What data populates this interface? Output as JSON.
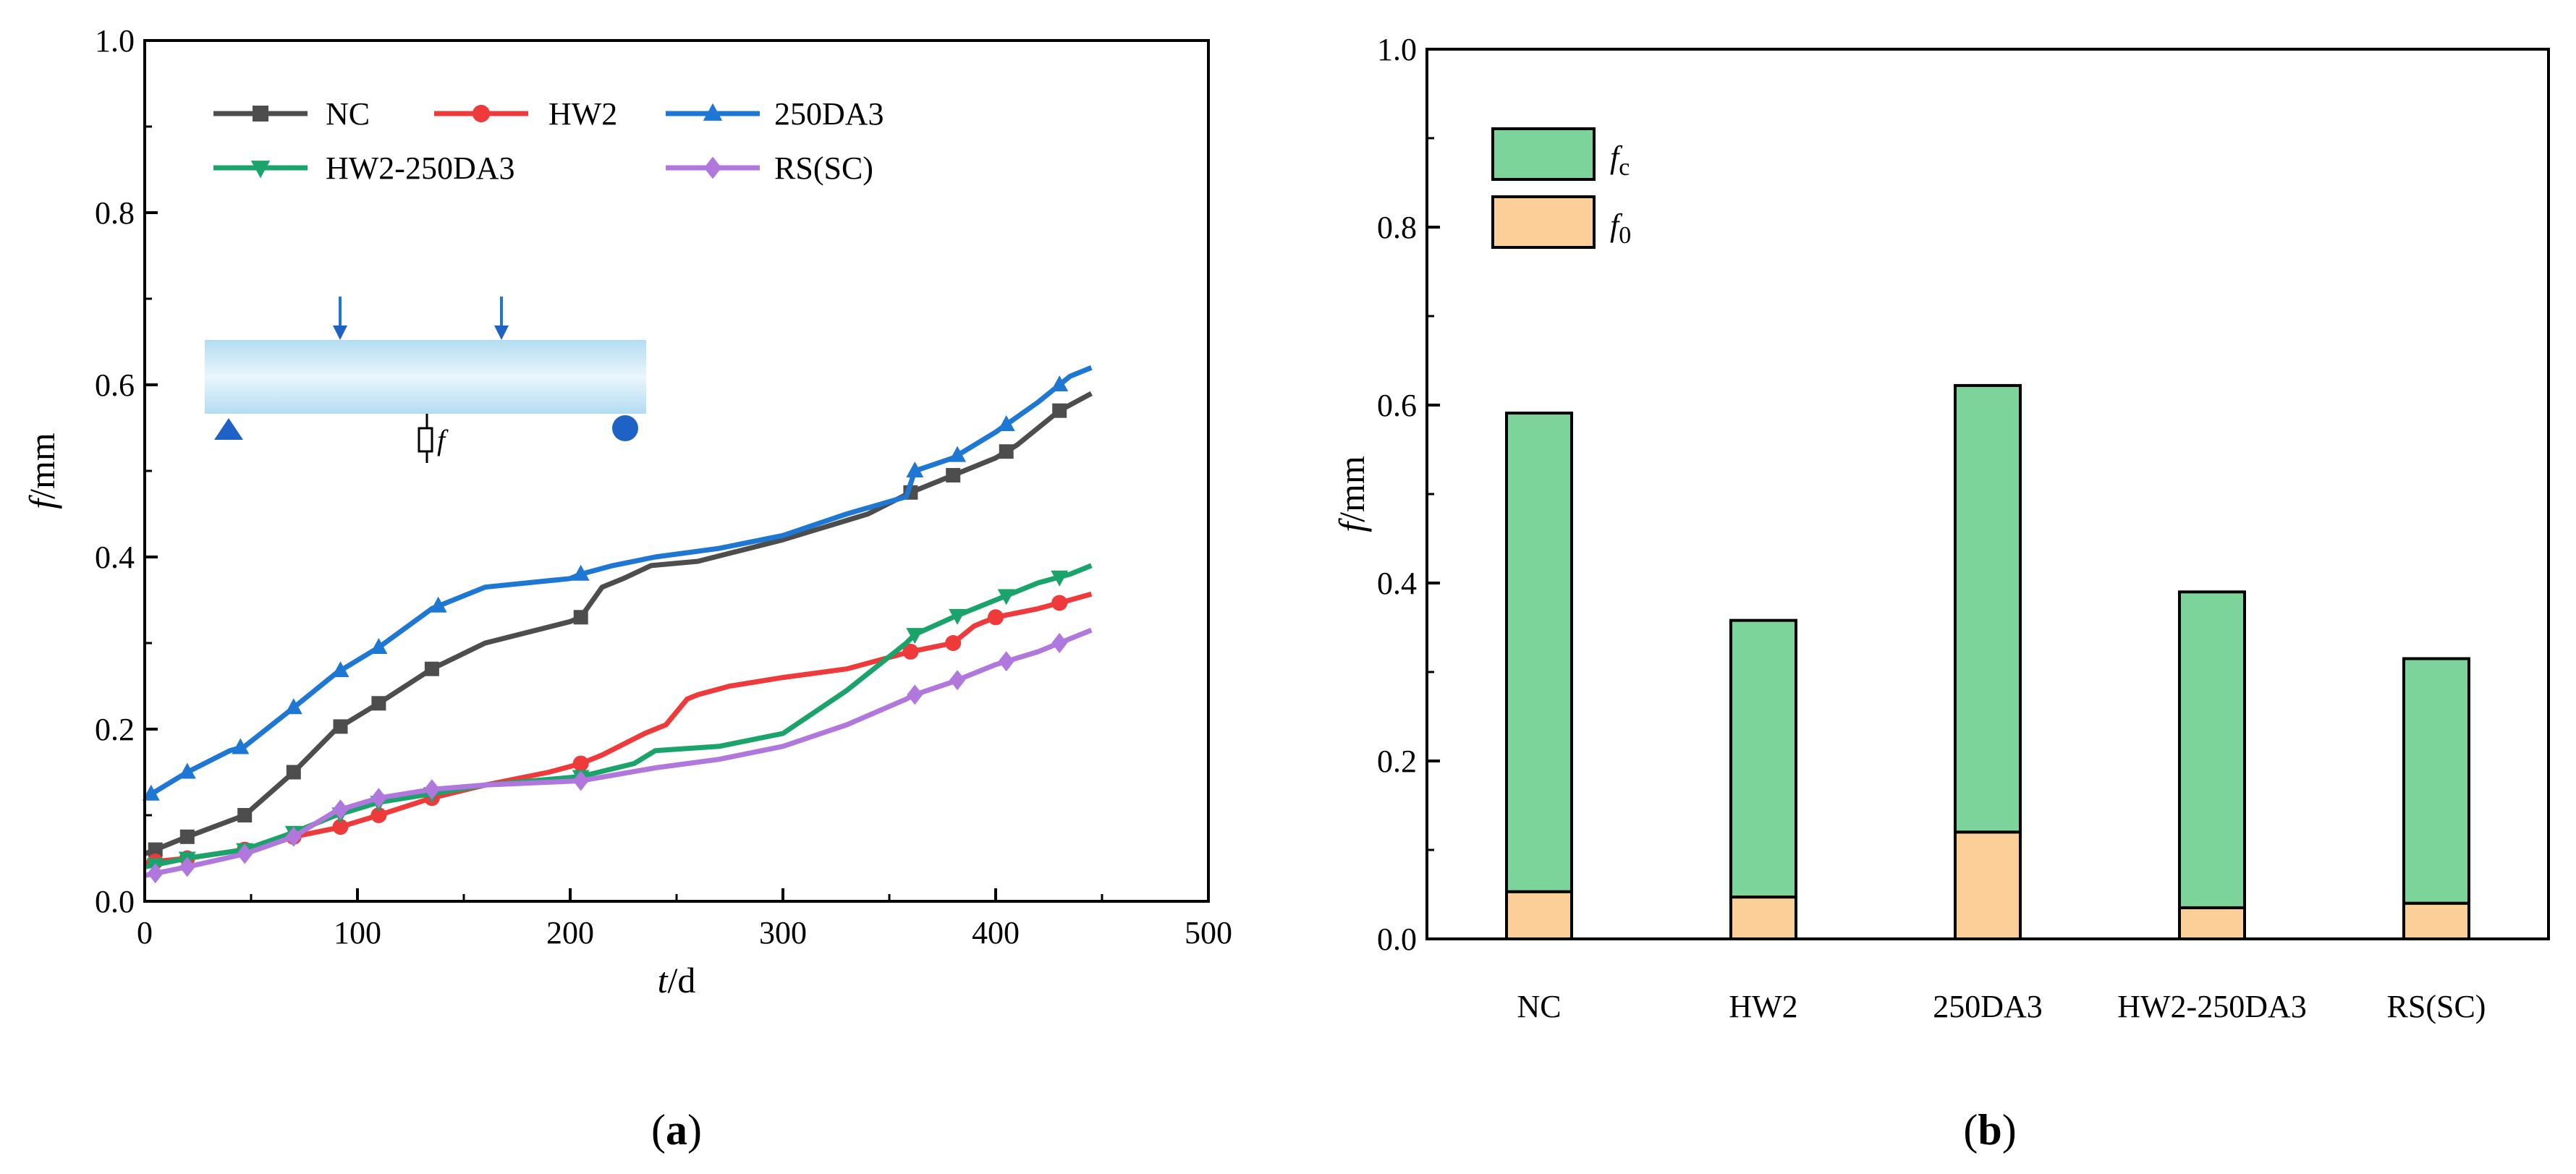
{
  "colors": {
    "NC": "#4d4d4d",
    "HW2": "#ee3a3a",
    "250DA3": "#1f77d4",
    "HW2-250DA3": "#1aa36a",
    "RS(SC)": "#b077dd",
    "fc_fill": "#7dd49b",
    "f0_fill": "#fccf98",
    "beam_edge": "#b3dcf2",
    "beam_mid": "#eaf6fc",
    "support": "#1f62c5"
  },
  "panel_labels": {
    "a": "(a)",
    "b": "(b)"
  },
  "chart_data": [
    {
      "type": "line",
      "xlabel": {
        "italic": "t",
        "rest": "/d"
      },
      "ylabel": {
        "italic": "f",
        "rest": "/mm"
      },
      "xlim": [
        0,
        500
      ],
      "ylim": [
        0,
        1.0
      ],
      "xticks": [
        "0",
        "100",
        "200",
        "300",
        "400",
        "500"
      ],
      "yticks": [
        "0.0",
        "0.2",
        "0.4",
        "0.6",
        "0.8",
        "1.0"
      ],
      "inset": {
        "label": "f"
      },
      "series": [
        {
          "name": "NC",
          "marker": "square",
          "x": [
            0,
            20,
            47,
            70,
            90,
            110,
            135,
            160,
            200,
            205,
            215,
            225,
            238,
            260,
            300,
            340,
            360,
            380,
            400,
            410,
            430,
            445
          ],
          "y": [
            0.055,
            0.075,
            0.1,
            0.15,
            0.2,
            0.23,
            0.27,
            0.3,
            0.325,
            0.33,
            0.365,
            0.375,
            0.39,
            0.395,
            0.42,
            0.45,
            0.475,
            0.495,
            0.515,
            0.53,
            0.57,
            0.59
          ],
          "markers_x": [
            5,
            20,
            47,
            70,
            92,
            110,
            135,
            205,
            360,
            380,
            405,
            430
          ]
        },
        {
          "name": "HW2",
          "marker": "circle",
          "x": [
            0,
            20,
            47,
            70,
            90,
            110,
            135,
            160,
            190,
            205,
            215,
            235,
            245,
            255,
            260,
            275,
            300,
            330,
            360,
            380,
            390,
            400,
            420,
            435,
            445
          ],
          "y": [
            0.045,
            0.05,
            0.06,
            0.075,
            0.085,
            0.1,
            0.12,
            0.135,
            0.15,
            0.16,
            0.17,
            0.195,
            0.205,
            0.235,
            0.24,
            0.25,
            0.26,
            0.27,
            0.29,
            0.3,
            0.32,
            0.33,
            0.34,
            0.35,
            0.357
          ],
          "markers_x": [
            5,
            20,
            47,
            70,
            92,
            110,
            135,
            205,
            360,
            380,
            400,
            430
          ]
        },
        {
          "name": "250DA3",
          "marker": "triangle-up",
          "x": [
            0,
            20,
            40,
            47,
            70,
            90,
            110,
            135,
            160,
            200,
            205,
            220,
            240,
            270,
            300,
            330,
            358,
            362,
            380,
            400,
            420,
            435,
            445
          ],
          "y": [
            0.12,
            0.15,
            0.175,
            0.18,
            0.225,
            0.265,
            0.295,
            0.34,
            0.365,
            0.375,
            0.38,
            0.39,
            0.4,
            0.41,
            0.425,
            0.45,
            0.47,
            0.5,
            0.515,
            0.545,
            0.58,
            0.61,
            0.62
          ],
          "markers_x": [
            3,
            20,
            45,
            70,
            92,
            110,
            138,
            205,
            362,
            382,
            405,
            430
          ]
        },
        {
          "name": "HW2-250DA3",
          "marker": "triangle-down",
          "x": [
            0,
            20,
            47,
            70,
            90,
            110,
            135,
            160,
            205,
            230,
            240,
            270,
            300,
            330,
            358,
            362,
            380,
            400,
            420,
            435,
            445
          ],
          "y": [
            0.04,
            0.05,
            0.06,
            0.08,
            0.1,
            0.115,
            0.125,
            0.135,
            0.145,
            0.16,
            0.175,
            0.18,
            0.195,
            0.245,
            0.3,
            0.31,
            0.33,
            0.35,
            0.37,
            0.38,
            0.39
          ],
          "markers_x": [
            5,
            20,
            47,
            70,
            92,
            110,
            135,
            205,
            362,
            382,
            405,
            430
          ]
        },
        {
          "name": "RS(SC)",
          "marker": "diamond",
          "x": [
            0,
            20,
            47,
            70,
            90,
            110,
            135,
            160,
            205,
            240,
            270,
            300,
            330,
            358,
            362,
            380,
            400,
            420,
            435,
            445
          ],
          "y": [
            0.03,
            0.04,
            0.055,
            0.075,
            0.105,
            0.12,
            0.13,
            0.135,
            0.14,
            0.155,
            0.165,
            0.18,
            0.205,
            0.235,
            0.24,
            0.255,
            0.275,
            0.29,
            0.305,
            0.315
          ],
          "markers_x": [
            5,
            20,
            47,
            70,
            92,
            110,
            135,
            205,
            362,
            382,
            405,
            430
          ]
        }
      ]
    },
    {
      "type": "bar",
      "stacked": true,
      "ylabel": {
        "italic": "f",
        "rest": "/mm"
      },
      "ylim": [
        0,
        1.0
      ],
      "yticks": [
        "0.0",
        "0.2",
        "0.4",
        "0.6",
        "0.8",
        "1.0"
      ],
      "categories": [
        "NC",
        "HW2",
        "250DA3",
        "HW2-250DA3",
        "RS(SC)"
      ],
      "legend": [
        {
          "main": "f",
          "sub": "c"
        },
        {
          "main": "f",
          "sub": "0"
        }
      ],
      "series": [
        {
          "name": "f0",
          "values": [
            0.053,
            0.047,
            0.12,
            0.035,
            0.04
          ]
        },
        {
          "name": "fc",
          "values": [
            0.538,
            0.311,
            0.502,
            0.355,
            0.275
          ]
        }
      ],
      "totals": [
        0.591,
        0.358,
        0.622,
        0.39,
        0.315
      ]
    }
  ]
}
